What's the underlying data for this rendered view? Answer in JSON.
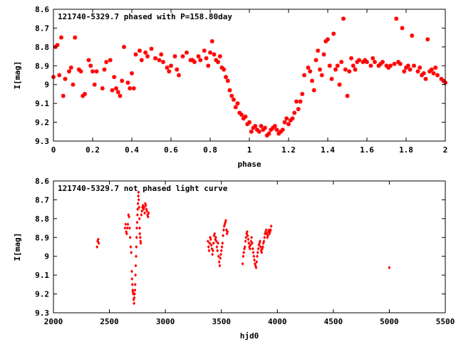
{
  "chart_data": [
    {
      "type": "scatter",
      "title": "121740-5329.7 phased with P=158.80day",
      "xlabel": "phase",
      "ylabel": "I[mag]",
      "xlim": [
        0,
        2
      ],
      "ylim": [
        9.3,
        8.6
      ],
      "y_inverted": true,
      "xticks": [
        "0",
        "0.2",
        "0.4",
        "0.6",
        "0.8",
        "1",
        "1.2",
        "1.4",
        "1.6",
        "1.8",
        "2"
      ],
      "yticks": [
        "8.6",
        "8.7",
        "8.8",
        "8.9",
        "9",
        "9.1",
        "9.2",
        "9.3"
      ],
      "grid": false,
      "marker_color": "#ff0000",
      "marker": "plus-star",
      "series": [
        {
          "x": [
            0.0,
            0.01,
            0.02,
            0.03,
            0.04,
            0.05,
            0.06,
            0.08,
            0.09,
            0.1,
            0.11,
            0.13,
            0.14,
            0.15,
            0.16,
            0.18,
            0.19,
            0.2,
            0.21,
            0.22,
            0.25,
            0.26,
            0.27,
            0.29,
            0.3,
            0.31,
            0.32,
            0.33,
            0.34,
            0.35,
            0.36,
            0.38,
            0.39,
            0.4,
            0.41,
            0.42,
            0.44,
            0.45,
            0.47,
            0.48,
            0.5,
            0.52,
            0.54,
            0.55,
            0.56,
            0.58,
            0.59,
            0.6,
            0.62,
            0.63,
            0.64,
            0.66,
            0.68,
            0.7,
            0.71,
            0.72,
            0.74,
            0.75,
            0.77,
            0.78,
            0.79,
            0.8,
            0.81,
            0.82,
            0.83,
            0.84,
            0.85,
            0.86,
            0.87,
            0.88,
            0.89,
            0.9,
            0.91,
            0.92,
            0.93,
            0.94,
            0.95,
            0.96,
            0.97,
            0.98,
            0.99,
            1.0,
            1.01,
            1.02,
            1.03,
            1.04,
            1.05,
            1.06,
            1.07,
            1.08,
            1.09,
            1.1,
            1.11,
            1.12,
            1.13,
            1.14,
            1.15,
            1.16,
            1.17,
            1.18,
            1.19,
            1.2,
            1.21,
            1.22,
            1.23,
            1.24,
            1.25,
            1.26,
            1.27,
            1.28,
            1.3,
            1.31,
            1.32,
            1.33,
            1.34,
            1.35,
            1.36,
            1.37,
            1.38,
            1.39,
            1.4,
            1.41,
            1.42,
            1.43,
            1.44,
            1.45,
            1.46,
            1.47,
            1.48,
            1.49,
            1.5,
            1.51,
            1.52,
            1.53,
            1.54,
            1.55,
            1.56,
            1.58,
            1.59,
            1.6,
            1.62,
            1.63,
            1.64,
            1.66,
            1.67,
            1.68,
            1.7,
            1.71,
            1.72,
            1.74,
            1.75,
            1.76,
            1.77,
            1.78,
            1.79,
            1.8,
            1.81,
            1.82,
            1.83,
            1.84,
            1.86,
            1.87,
            1.88,
            1.89,
            1.9,
            1.91,
            1.92,
            1.93,
            1.94,
            1.95,
            1.96,
            1.98,
            1.99,
            2.0
          ],
          "y": [
            8.96,
            8.8,
            8.79,
            8.95,
            8.75,
            9.06,
            8.97,
            8.93,
            8.91,
            9.0,
            8.75,
            8.92,
            8.93,
            9.06,
            9.05,
            8.87,
            8.9,
            8.93,
            9.0,
            8.93,
            9.02,
            8.92,
            8.88,
            8.87,
            9.03,
            8.96,
            9.02,
            9.04,
            9.06,
            8.98,
            8.8,
            8.99,
            9.02,
            8.94,
            9.02,
            8.84,
            8.82,
            8.87,
            8.83,
            8.85,
            8.81,
            8.86,
            8.87,
            8.84,
            8.88,
            8.91,
            8.93,
            8.9,
            8.85,
            8.92,
            8.95,
            8.85,
            8.83,
            8.87,
            8.87,
            8.88,
            8.85,
            8.87,
            8.82,
            8.86,
            8.9,
            8.83,
            8.77,
            8.84,
            8.87,
            8.88,
            8.85,
            8.91,
            8.92,
            8.96,
            8.98,
            9.03,
            9.06,
            9.08,
            9.12,
            9.1,
            9.15,
            9.16,
            9.18,
            9.17,
            9.21,
            9.2,
            9.25,
            9.23,
            9.22,
            9.24,
            9.25,
            9.22,
            9.24,
            9.23,
            9.27,
            9.26,
            9.24,
            9.23,
            9.22,
            9.24,
            9.26,
            9.25,
            9.24,
            9.2,
            9.18,
            9.21,
            9.19,
            9.18,
            9.15,
            9.09,
            9.13,
            9.09,
            9.05,
            8.95,
            8.91,
            8.93,
            8.98,
            9.03,
            8.87,
            8.82,
            8.92,
            8.95,
            8.84,
            8.77,
            8.76,
            8.9,
            8.97,
            8.73,
            8.92,
            8.9,
            9.0,
            8.88,
            8.65,
            8.92,
            9.06,
            8.93,
            8.86,
            8.9,
            8.92,
            8.88,
            8.87,
            8.88,
            8.87,
            8.88,
            8.9,
            8.86,
            8.88,
            8.9,
            8.89,
            8.88,
            8.9,
            8.91,
            8.9,
            8.89,
            8.65,
            8.88,
            8.89,
            8.7,
            8.93,
            8.91,
            8.9,
            8.92,
            8.74,
            8.9,
            8.93,
            8.91,
            8.95,
            8.94,
            8.97,
            8.76,
            8.93,
            8.92,
            8.94,
            8.91,
            8.95,
            8.97,
            8.98,
            8.99
          ]
        }
      ]
    },
    {
      "type": "scatter",
      "title": "121740-5329.7 not phased light curve",
      "xlabel": "hjd0",
      "ylabel": "I[mag]",
      "xlim": [
        2000,
        5500
      ],
      "ylim": [
        9.3,
        8.6
      ],
      "y_inverted": true,
      "xticks": [
        "2000",
        "2500",
        "3000",
        "3500",
        "4000",
        "4500",
        "5000",
        "5500"
      ],
      "yticks": [
        "8.6",
        "8.7",
        "8.8",
        "8.9",
        "9",
        "9.1",
        "9.2",
        "9.3"
      ],
      "grid": false,
      "marker_color": "#ff0000",
      "marker": "diamond",
      "series": [
        {
          "x": [
            2390,
            2395,
            2400,
            2405,
            2640,
            2645,
            2650,
            2655,
            2660,
            2665,
            2670,
            2675,
            2680,
            2685,
            2690,
            2695,
            2700,
            2702,
            2705,
            2708,
            2710,
            2713,
            2716,
            2720,
            2722,
            2725,
            2728,
            2730,
            2733,
            2735,
            2738,
            2740,
            2743,
            2745,
            2748,
            2750,
            2752,
            2755,
            2758,
            2760,
            2762,
            2765,
            2768,
            2770,
            2772,
            2775,
            2778,
            2780,
            2785,
            2790,
            2795,
            2800,
            2805,
            2810,
            2815,
            2820,
            2825,
            2830,
            2835,
            2840,
            2845,
            2850,
            3380,
            3385,
            3390,
            3395,
            3400,
            3405,
            3410,
            3415,
            3420,
            3425,
            3430,
            3435,
            3440,
            3445,
            3450,
            3455,
            3460,
            3465,
            3470,
            3475,
            3480,
            3485,
            3490,
            3495,
            3500,
            3505,
            3510,
            3515,
            3520,
            3525,
            3530,
            3535,
            3540,
            3545,
            3550,
            3555,
            3690,
            3695,
            3700,
            3705,
            3710,
            3715,
            3720,
            3725,
            3730,
            3735,
            3740,
            3745,
            3750,
            3755,
            3760,
            3765,
            3770,
            3775,
            3780,
            3785,
            3790,
            3795,
            3800,
            3805,
            3810,
            3815,
            3820,
            3825,
            3830,
            3835,
            3840,
            3845,
            3850,
            3855,
            3860,
            3865,
            3870,
            3875,
            3880,
            3885,
            3890,
            3895,
            3900,
            3905,
            3910,
            3915,
            3920,
            3925,
            3930,
            3935,
            3940,
            3945,
            5000
          ],
          "y": [
            8.95,
            8.92,
            8.91,
            8.93,
            8.85,
            8.83,
            8.87,
            8.88,
            8.85,
            8.83,
            8.78,
            8.79,
            8.85,
            8.9,
            8.95,
            8.98,
            9.08,
            9.12,
            9.15,
            9.18,
            9.19,
            9.2,
            9.23,
            9.25,
            9.22,
            9.2,
            9.18,
            9.15,
            9.1,
            9.05,
            9.0,
            8.95,
            8.9,
            8.85,
            8.82,
            8.78,
            8.75,
            8.72,
            8.68,
            8.66,
            8.7,
            8.74,
            8.8,
            8.85,
            8.88,
            8.9,
            8.92,
            8.93,
            8.78,
            8.76,
            8.74,
            8.73,
            8.75,
            8.74,
            8.77,
            8.72,
            8.73,
            8.75,
            8.76,
            8.78,
            8.79,
            8.77,
            8.92,
            8.95,
            8.97,
            8.93,
            8.9,
            8.91,
            8.94,
            8.96,
            8.99,
            8.97,
            8.93,
            8.89,
            8.88,
            8.91,
            8.9,
            8.92,
            8.95,
            8.97,
            8.93,
            9.0,
            9.03,
            9.05,
            9.01,
            8.99,
            8.97,
            8.95,
            8.93,
            8.89,
            8.86,
            8.84,
            8.83,
            8.82,
            8.81,
            8.86,
            8.88,
            8.87,
            9.04,
            9.0,
            8.98,
            8.96,
            8.95,
            8.92,
            8.9,
            8.88,
            8.87,
            8.89,
            8.91,
            8.93,
            8.95,
            8.96,
            8.94,
            8.92,
            8.9,
            8.93,
            8.96,
            8.98,
            9.0,
            9.02,
            9.04,
            9.05,
            9.06,
            9.03,
            9.0,
            8.98,
            8.96,
            8.94,
            8.93,
            8.92,
            8.95,
            8.97,
            8.98,
            8.96,
            8.95,
            8.93,
            8.92,
            8.9,
            8.88,
            8.87,
            8.86,
            8.88,
            8.9,
            8.89,
            8.87,
            8.86,
            8.88,
            8.87,
            8.86,
            8.84,
            9.06
          ]
        }
      ]
    }
  ]
}
